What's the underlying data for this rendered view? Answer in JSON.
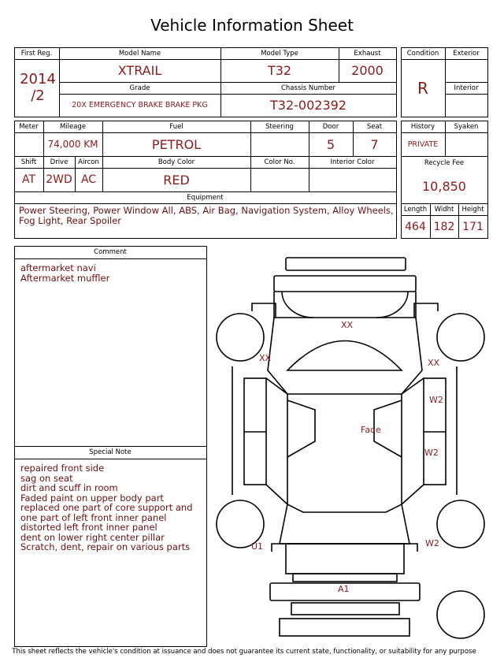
{
  "title": "Vehicle Information Sheet",
  "vehicle": {
    "first_reg": {
      "label": "First Reg.",
      "value": "2014\n/2"
    },
    "model_name": {
      "label": "Model Name",
      "value": "XTRAIL"
    },
    "model_type": {
      "label": "Model Type",
      "value": "T32"
    },
    "exhaust": {
      "label": "Exhaust",
      "value": "2000"
    },
    "grade": {
      "label": "Grade",
      "value": "20X EMERGENCY BRAKE BRAKE PKG"
    },
    "chassis_number": {
      "label": "Chassis Number",
      "value": "T32-002392"
    }
  },
  "condition": {
    "condition": {
      "label": "Condition",
      "value": "R"
    },
    "exterior": {
      "label": "Exterior"
    },
    "interior": {
      "label": "Interior"
    }
  },
  "details": {
    "meter": {
      "label": "Meter"
    },
    "mileage": {
      "label": "Mileage",
      "value": "74,000 KM"
    },
    "fuel": {
      "label": "Fuel",
      "value": "PETROL"
    },
    "steering": {
      "label": "Steering"
    },
    "door": {
      "label": "Door",
      "value": "5"
    },
    "seat": {
      "label": "Seat",
      "value": "7"
    },
    "shift": {
      "label": "Shift",
      "value": "AT"
    },
    "drive": {
      "label": "Drive",
      "value": "2WD"
    },
    "aircon": {
      "label": "Aircon",
      "value": "AC"
    },
    "body_color": {
      "label": "Body Color",
      "value": "RED"
    },
    "color_no": {
      "label": "Color No."
    },
    "interior_color": {
      "label": "Interior Color"
    },
    "equipment": {
      "label": "Equipment",
      "value": "Power Steering, Power Window  All, ABS, Air Bag, Navigation System, Alloy Wheels, Fog Light, Rear Spoiler"
    }
  },
  "history": {
    "history": {
      "label": "History",
      "value": "PRIVATE"
    },
    "syaken": {
      "label": "Syaken"
    },
    "recycle_fee": {
      "label": "Recycle Fee",
      "value": "10,850"
    },
    "length": {
      "label": "Length",
      "value": "464"
    },
    "width": {
      "label": "Widht",
      "value": "182"
    },
    "height": {
      "label": "Height",
      "value": "171"
    }
  },
  "comment": {
    "label": "Comment",
    "lines": [
      "aftermarket navi",
      "Aftermarket muffler"
    ]
  },
  "special_note": {
    "label": "Special Note",
    "lines": [
      "repaired front side",
      "sag on seat",
      "dirt and scuff in room",
      "Faded paint on upper body part",
      "replaced one part of core support and",
      "one part of left front inner panel",
      "distorted left front inner panel",
      "dent on lower right center pillar",
      "Scratch, dent, repair on various parts"
    ]
  },
  "damage_codes": [
    "XX",
    "XX",
    "XX",
    "W2",
    "Fade",
    "W2",
    "U1",
    "W2",
    "A1"
  ],
  "footer": "This sheet reflects the vehicle's condition at issuance and does not guarantee its current state, functionality, or suitability for any purpose"
}
